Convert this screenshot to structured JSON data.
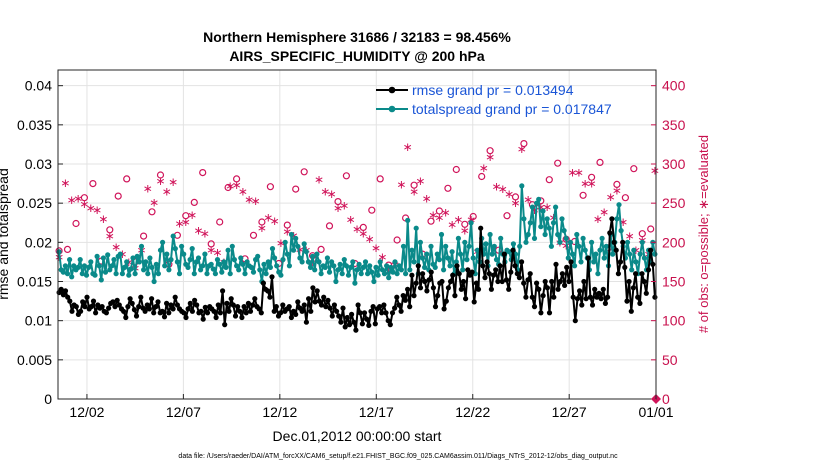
{
  "chart_data": {
    "type": "line",
    "title": "Northern Hemisphere 31686 / 32183 = 98.456%",
    "subtitle": "AIRS_SPECIFIC_HUMIDITY @ 200 hPa",
    "xlabel": "Dec.01,2012 00:00:00 start",
    "ylabel": "rmse and totalspread",
    "y2label": "# of obs: o=possible; ∗=evaluated",
    "footer": "data file: /Users/raeder/DAI/ATM_forcXX/CAM6_setup/f.e21.FHIST_BGC.f09_025.CAM6assim.011/Diags_NTrS_2012-12/obs_diag_output.nc",
    "xlim": [
      0.5,
      31.5
    ],
    "ylim": [
      0,
      0.042
    ],
    "y2lim": [
      0,
      420
    ],
    "xticks": [
      {
        "x": 2,
        "label": "12/02"
      },
      {
        "x": 7,
        "label": "12/07"
      },
      {
        "x": 12,
        "label": "12/12"
      },
      {
        "x": 17,
        "label": "12/17"
      },
      {
        "x": 22,
        "label": "12/22"
      },
      {
        "x": 27,
        "label": "12/27"
      },
      {
        "x": 32,
        "label": "01/01"
      }
    ],
    "yticks": [
      "0",
      "0.005",
      "0.01",
      "0.015",
      "0.02",
      "0.025",
      "0.03",
      "0.035",
      "0.04"
    ],
    "y2ticks": [
      "0",
      "50",
      "100",
      "150",
      "200",
      "250",
      "300",
      "350",
      "400"
    ],
    "colors": {
      "rmse": "#000000",
      "spread": "#0a8a8a",
      "obs": "#d0145a",
      "legend_text": "#1a55d6"
    },
    "legend": {
      "placement": "top-right",
      "entries": [
        "rmse grand pr = 0.013494",
        "totalspread grand pr = 0.017847"
      ]
    },
    "series": [
      {
        "name": "rmse grand pr = 0.013494",
        "values": [
          0.0136,
          0.014,
          0.0133,
          0.0138,
          0.013,
          0.0125,
          0.0112,
          0.012,
          0.0118,
          0.0108,
          0.0112,
          0.0124,
          0.0118,
          0.013,
          0.0115,
          0.0118,
          0.0125,
          0.011,
          0.012,
          0.0116,
          0.0118,
          0.0112,
          0.011,
          0.0116,
          0.0122,
          0.0124,
          0.0118,
          0.0126,
          0.012,
          0.0115,
          0.0112,
          0.0104,
          0.0118,
          0.0128,
          0.0122,
          0.0114,
          0.0106,
          0.0118,
          0.013,
          0.0116,
          0.0112,
          0.012,
          0.0115,
          0.0128,
          0.011,
          0.0118,
          0.0124,
          0.011,
          0.0112,
          0.0105,
          0.0122,
          0.011,
          0.012,
          0.0115,
          0.013,
          0.012,
          0.0115,
          0.0112,
          0.011,
          0.0104,
          0.0115,
          0.0122,
          0.0112,
          0.0126,
          0.012,
          0.011,
          0.0112,
          0.0102,
          0.0117,
          0.011,
          0.0118,
          0.0115,
          0.0112,
          0.0104,
          0.012,
          0.011,
          0.0138,
          0.0095,
          0.0122,
          0.0112,
          0.0128,
          0.012,
          0.0106,
          0.0118,
          0.0112,
          0.0104,
          0.0118,
          0.011,
          0.0122,
          0.0112,
          0.012,
          0.0128,
          0.0118,
          0.0115,
          0.011,
          0.0148,
          0.014,
          0.0138,
          0.013,
          0.0156,
          0.0112,
          0.0118,
          0.0106,
          0.011,
          0.012,
          0.0112,
          0.0115,
          0.0118,
          0.0104,
          0.0112,
          0.0108,
          0.0124,
          0.0116,
          0.0112,
          0.012,
          0.0098,
          0.0128,
          0.0112,
          0.0142,
          0.0124,
          0.0138,
          0.0125,
          0.012,
          0.013,
          0.0118,
          0.0126,
          0.0116,
          0.0106,
          0.012,
          0.0112,
          0.0106,
          0.0098,
          0.0116,
          0.0092,
          0.0104,
          0.0095,
          0.0108,
          0.0098,
          0.0088,
          0.012,
          0.011,
          0.0096,
          0.011,
          0.0102,
          0.0094,
          0.0112,
          0.0118,
          0.0096,
          0.0115,
          0.0118,
          0.011,
          0.012,
          0.011,
          0.01,
          0.0095,
          0.011,
          0.0116,
          0.013,
          0.012,
          0.0112,
          0.0132,
          0.0126,
          0.014,
          0.0118,
          0.0158,
          0.0132,
          0.0148,
          0.017,
          0.0142,
          0.016,
          0.015,
          0.0138,
          0.0152,
          0.0162,
          0.0142,
          0.0118,
          0.0132,
          0.0148,
          0.015,
          0.0115,
          0.0125,
          0.0142,
          0.015,
          0.0158,
          0.0132,
          0.017,
          0.016,
          0.014,
          0.015,
          0.0128,
          0.0165,
          0.0158,
          0.0162,
          0.0124,
          0.0148,
          0.014,
          0.0218,
          0.017,
          0.0155,
          0.0175,
          0.016,
          0.014,
          0.0158,
          0.0165,
          0.015,
          0.017,
          0.015,
          0.0185,
          0.0152,
          0.014,
          0.0162,
          0.019,
          0.017,
          0.016,
          0.0155,
          0.0175,
          0.0148,
          0.013,
          0.0152,
          0.016,
          0.013,
          0.0118,
          0.0148,
          0.014,
          0.011,
          0.0132,
          0.015,
          0.0142,
          0.011,
          0.015,
          0.013,
          0.0172,
          0.014,
          0.015,
          0.016,
          0.0145,
          0.0168,
          0.015,
          0.0175,
          0.013,
          0.01,
          0.0128,
          0.0138,
          0.012,
          0.015,
          0.0128,
          0.018,
          0.013,
          0.012,
          0.014,
          0.013,
          0.0135,
          0.0128,
          0.014,
          0.0122,
          0.013,
          0.0212,
          0.023,
          0.02,
          0.019,
          0.016,
          0.0175,
          0.02,
          0.0168,
          0.0125,
          0.015,
          0.0112,
          0.0142,
          0.016,
          0.013,
          0.0122,
          0.016,
          0.015,
          0.0135,
          0.0165,
          0.019,
          0.0172,
          0.013
        ]
      },
      {
        "name": "totalspread grand pr = 0.017847",
        "values": [
          0.0188,
          0.0165,
          0.0162,
          0.017,
          0.016,
          0.0178,
          0.0156,
          0.017,
          0.0165,
          0.0168,
          0.0178,
          0.016,
          0.017,
          0.0158,
          0.0168,
          0.0175,
          0.016,
          0.0158,
          0.0182,
          0.017,
          0.0152,
          0.018,
          0.0162,
          0.0184,
          0.0165,
          0.017,
          0.0178,
          0.016,
          0.0182,
          0.0185,
          0.016,
          0.0168,
          0.0175,
          0.0158,
          0.0166,
          0.018,
          0.016,
          0.0182,
          0.0175,
          0.0195,
          0.0165,
          0.0175,
          0.016,
          0.018,
          0.0168,
          0.015,
          0.0172,
          0.016,
          0.019,
          0.02,
          0.017,
          0.0185,
          0.0165,
          0.0178,
          0.0208,
          0.0192,
          0.0175,
          0.016,
          0.0195,
          0.0185,
          0.0172,
          0.0168,
          0.0178,
          0.0192,
          0.016,
          0.0175,
          0.018,
          0.0165,
          0.017,
          0.0185,
          0.016,
          0.017,
          0.0172,
          0.0166,
          0.016,
          0.0178,
          0.0172,
          0.0162,
          0.0175,
          0.0168,
          0.019,
          0.016,
          0.0195,
          0.0178,
          0.017,
          0.0165,
          0.018,
          0.0172,
          0.016,
          0.0175,
          0.017,
          0.0168,
          0.0162,
          0.0178,
          0.0182,
          0.0165,
          0.015,
          0.0172,
          0.016,
          0.0175,
          0.0168,
          0.0192,
          0.018,
          0.017,
          0.0162,
          0.0158,
          0.0178,
          0.02,
          0.0185,
          0.017,
          0.021,
          0.019,
          0.0205,
          0.0195,
          0.018,
          0.0175,
          0.0198,
          0.0188,
          0.0175,
          0.0168,
          0.0182,
          0.0165,
          0.0185,
          0.0175,
          0.016,
          0.017,
          0.0168,
          0.018,
          0.0162,
          0.0175,
          0.017,
          0.015,
          0.0165,
          0.0172,
          0.016,
          0.0178,
          0.017,
          0.0158,
          0.0168,
          0.0175,
          0.0148,
          0.0165,
          0.0172,
          0.016,
          0.0168,
          0.0175,
          0.016,
          0.017,
          0.0162,
          0.015,
          0.0168,
          0.0158,
          0.0175,
          0.0165,
          0.016,
          0.017,
          0.0155,
          0.0168,
          0.0162,
          0.0175,
          0.016,
          0.017,
          0.0165,
          0.0195,
          0.016,
          0.0228,
          0.0165,
          0.019,
          0.0175,
          0.0218,
          0.016,
          0.02,
          0.018,
          0.0168,
          0.0185,
          0.0165,
          0.0195,
          0.0172,
          0.0168,
          0.0185,
          0.0178,
          0.021,
          0.0165,
          0.0195,
          0.018,
          0.017,
          0.0188,
          0.016,
          0.0175,
          0.0205,
          0.0185,
          0.0165,
          0.02,
          0.0178,
          0.0195,
          0.0225,
          0.018,
          0.016,
          0.019,
          0.0175,
          0.0205,
          0.0185,
          0.0198,
          0.017,
          0.021,
          0.0185,
          0.0195,
          0.0178,
          0.0172,
          0.0205,
          0.0185,
          0.0175,
          0.019,
          0.0188,
          0.0178,
          0.0198,
          0.0185,
          0.0165,
          0.0195,
          0.0272,
          0.023,
          0.02,
          0.021,
          0.0225,
          0.0245,
          0.0205,
          0.025,
          0.0255,
          0.022,
          0.024,
          0.021,
          0.023,
          0.0218,
          0.0195,
          0.0225,
          0.0245,
          0.021,
          0.02,
          0.023,
          0.0215,
          0.0205,
          0.018,
          0.02,
          0.0185,
          0.017,
          0.021,
          0.0195,
          0.0175,
          0.0205,
          0.019,
          0.018,
          0.0165,
          0.02,
          0.0175,
          0.0185,
          0.016,
          0.019,
          0.0205,
          0.018,
          0.0195,
          0.017,
          0.021,
          0.0185,
          0.02,
          0.023,
          0.0248,
          0.0215,
          0.0195,
          0.018,
          0.02,
          0.0185,
          0.0165,
          0.019,
          0.0175,
          0.016,
          0.0185,
          0.02,
          0.018,
          0.0165,
          0.019,
          0.0175,
          0.02,
          0.0185
        ]
      }
    ],
    "obs_possible_sample_every": 4,
    "obs_evaluated_sample_every": 3
  }
}
